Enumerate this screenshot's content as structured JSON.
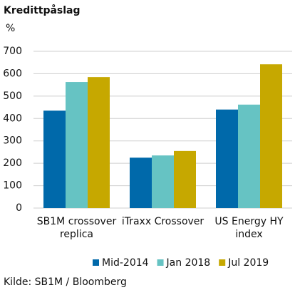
{
  "chart_data": {
    "type": "bar",
    "title": "Kredittpåslag",
    "unit_label": "%",
    "categories": [
      "SB1M crossover replica",
      "iTraxx Crossover",
      "US Energy HY index"
    ],
    "series": [
      {
        "name": "Mid-2014",
        "color": "#0069aa",
        "values": [
          435,
          225,
          440
        ]
      },
      {
        "name": "Jan 2018",
        "color": "#66c3c3",
        "values": [
          563,
          235,
          462
        ]
      },
      {
        "name": "Jul 2019",
        "color": "#c6a800",
        "values": [
          585,
          255,
          642
        ]
      }
    ],
    "ylim": [
      0,
      700
    ],
    "yticks": [
      0,
      100,
      200,
      300,
      400,
      500,
      600,
      700
    ],
    "grid": true,
    "source": "Kilde: SB1M / Bloomberg"
  }
}
